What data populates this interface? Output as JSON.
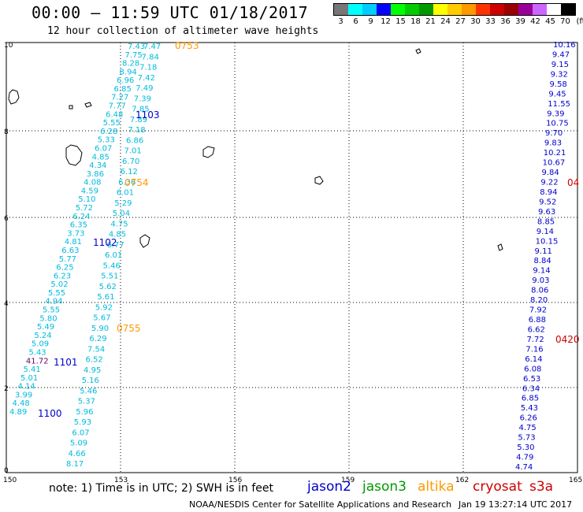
{
  "header": {
    "title": "00:00 – 11:59 UTC 01/18/2017",
    "subtitle": "12 hour collection of altimeter wave heights"
  },
  "colorbar": {
    "colors": [
      "#777777",
      "#00ffff",
      "#00ccff",
      "#0000ff",
      "#00ff00",
      "#00cc00",
      "#009900",
      "#ffff00",
      "#ffcc00",
      "#ff9900",
      "#ff3300",
      "#cc0000",
      "#990000",
      "#990099",
      "#cc66ff",
      "#ffffff",
      "#000000"
    ],
    "labels": [
      "3",
      "6",
      "9",
      "12",
      "15",
      "18",
      "21",
      "24",
      "27",
      "30",
      "33",
      "36",
      "39",
      "42",
      "45",
      "70",
      "(ft)"
    ]
  },
  "axes": {
    "x_ticks": [
      "150",
      "153",
      "156",
      "159",
      "162",
      "165"
    ],
    "y_ticks": [
      "10",
      "8",
      "6",
      "4",
      "2",
      "0"
    ]
  },
  "colors": {
    "jason2": "#0000cc",
    "jason3": "#009900",
    "altika": "#ff9900",
    "cryosat": "#cc0000",
    "s3a": "#cc0000",
    "swh_default": "#00bbdd",
    "swh_blue": "#0000cc",
    "swh_purple": "#660066"
  },
  "time_labels": [
    {
      "text": "0753",
      "sat": "altika"
    },
    {
      "text": "1103",
      "sat": "jason2"
    },
    {
      "text": "0754",
      "sat": "altika"
    },
    {
      "text": "1102",
      "sat": "jason2"
    },
    {
      "text": "0755",
      "sat": "altika"
    },
    {
      "text": "1101",
      "sat": "jason2"
    },
    {
      "text": "1100",
      "sat": "jason2"
    },
    {
      "text": "04",
      "sat": "cryosat"
    },
    {
      "text": "0420",
      "sat": "cryosat"
    }
  ],
  "track_a": [
    "7.43",
    "7.75",
    "8.28",
    "8.94",
    "6.96",
    "6.85",
    "7.27",
    "7.77",
    "6.48",
    "5.55",
    "6.28",
    "5.33",
    "6.07",
    "4.85",
    "4.34",
    "3.86",
    "4.08",
    "4.59",
    "5.10",
    "5.72",
    "6.24",
    "6.35",
    "3.73",
    "4.81",
    "6.63",
    "5.77",
    "6.25",
    "6.23",
    "5.02",
    "5.55",
    "4.94",
    "5.55",
    "5.80",
    "5.49",
    "5.24",
    "5.09",
    "5.43",
    "41.72",
    "5.41",
    "5.01",
    "4.14",
    "3.99",
    "4.48",
    "4.89"
  ],
  "track_b": [
    "7.47",
    "7.84",
    "7.18",
    "7.42",
    "7.49",
    "7.39",
    "7.85",
    "7.89",
    "7.18",
    "6.86",
    "7.01",
    "6.70",
    "6.12",
    "6.36",
    "6.01",
    "5.29",
    "5.04",
    "4.75",
    "4.85",
    "6.77",
    "6.01",
    "5.46",
    "5.51",
    "5.62",
    "5.61",
    "5.92",
    "5.67",
    "5.90",
    "6.29",
    "7.54",
    "6.52",
    "4.95",
    "5.16",
    "5.46",
    "5.37",
    "5.96",
    "5.93",
    "6.07",
    "5.09",
    "4.66",
    "8.17"
  ],
  "track_c": [
    "10.16",
    "9.47",
    "9.15",
    "9.32",
    "9.58",
    "9.45",
    "11.55",
    "9.39",
    "10.75",
    "9.70",
    "9.83",
    "10.21",
    "10.67",
    "9.84",
    "9.22",
    "8.94",
    "9.52",
    "9.63",
    "8.85",
    "9.14",
    "10.15",
    "9.11",
    "8.84",
    "9.14",
    "9.03",
    "8.06",
    "8.20",
    "7.92",
    "6.88",
    "6.62",
    "7.72",
    "7.16",
    "6.14",
    "6.08",
    "6.53",
    "6.34",
    "6.85",
    "5.43",
    "6.26",
    "4.75",
    "5.73",
    "5.30",
    "4.79",
    "4.74"
  ],
  "footer": {
    "note": "note:  1) Time is in UTC; 2) SWH is in feet",
    "legend": [
      {
        "label": "jason2",
        "sat": "jason2"
      },
      {
        "label": "jason3",
        "sat": "jason3"
      },
      {
        "label": "altika",
        "sat": "altika"
      },
      {
        "label": "cryosat",
        "sat": "cryosat"
      },
      {
        "label": "s3a",
        "sat": "s3a"
      }
    ],
    "credit": "NOAA/NESDIS Center for Satellite Applications and Research",
    "date": "Jan 19 13:27:14 UTC 2017"
  }
}
